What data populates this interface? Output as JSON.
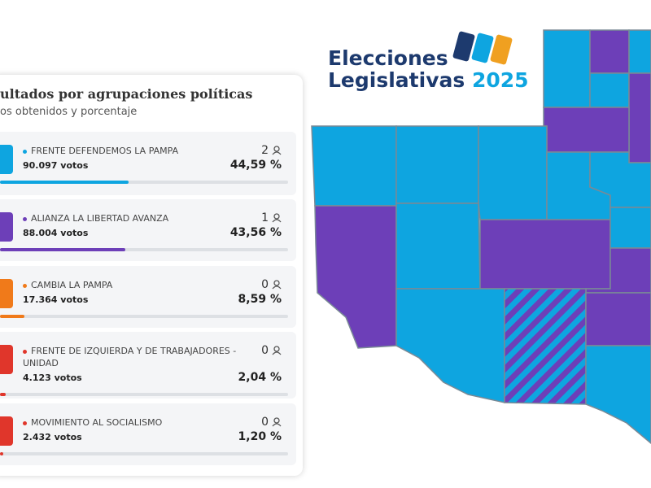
{
  "panel": {
    "title": "ultados por agrupaciones políticas",
    "subtitle": "os obtenidos y porcentaje",
    "parties": [
      {
        "name": "FRENTE DEFENDEMOS LA PAMPA",
        "votes": "90.097 votos",
        "seats": 2,
        "pct": 44.59,
        "pct_label": "44,59 %",
        "color": "#0ea5e0",
        "dot": "#0ea5e0"
      },
      {
        "name": "ALIANZA LA LIBERTAD AVANZA",
        "votes": "88.004 votos",
        "seats": 1,
        "pct": 43.56,
        "pct_label": "43,56 %",
        "color": "#6d3fb8",
        "dot": "#6d3fb8"
      },
      {
        "name": "CAMBIA LA PAMPA",
        "votes": "17.364 votos",
        "seats": 0,
        "pct": 8.59,
        "pct_label": "8,59 %",
        "color": "#f07a1a",
        "dot": "#f07a1a"
      },
      {
        "name": "FRENTE DE IZQUIERDA Y DE TRABAJADORES - UNIDAD",
        "votes": "4.123 votos",
        "seats": 0,
        "pct": 2.04,
        "pct_label": "2,04 %",
        "color": "#e0362b",
        "dot": "#e0362b"
      },
      {
        "name": "MOVIMIENTO AL SOCIALISMO",
        "votes": "2.432 votos",
        "seats": 0,
        "pct": 1.2,
        "pct_label": "1,20 %",
        "color": "#e0362b",
        "dot": "#e0362b"
      }
    ]
  },
  "logo": {
    "line1": "Elecciones",
    "line2": "Legislativas",
    "year": "2025"
  }
}
